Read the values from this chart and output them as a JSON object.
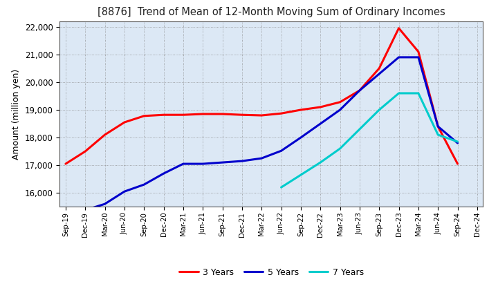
{
  "title": "[8876]  Trend of Mean of 12-Month Moving Sum of Ordinary Incomes",
  "ylabel": "Amount (million yen)",
  "ylim": [
    15500,
    22200
  ],
  "yticks": [
    16000,
    17000,
    18000,
    19000,
    20000,
    21000,
    22000
  ],
  "background_color": "#ffffff",
  "plot_bg_color": "#dce8f5",
  "grid_color": "#888888",
  "x_labels": [
    "Sep-19",
    "Dec-19",
    "Mar-20",
    "Jun-20",
    "Sep-20",
    "Dec-20",
    "Mar-21",
    "Jun-21",
    "Sep-21",
    "Dec-21",
    "Mar-22",
    "Jun-22",
    "Sep-22",
    "Dec-22",
    "Mar-23",
    "Jun-23",
    "Sep-23",
    "Dec-23",
    "Mar-24",
    "Jun-24",
    "Sep-24",
    "Dec-24"
  ],
  "series": {
    "3 Years": {
      "color": "#ff0000",
      "data_x": [
        0,
        1,
        2,
        3,
        4,
        5,
        6,
        7,
        8,
        9,
        10,
        11,
        12,
        13,
        14,
        15,
        16,
        17,
        18,
        19,
        20,
        21
      ],
      "data_y": [
        17050,
        17500,
        18100,
        18550,
        18780,
        18820,
        18820,
        18850,
        18850,
        18820,
        18800,
        18870,
        19000,
        19100,
        19280,
        19700,
        20500,
        21950,
        21100,
        18400,
        17050,
        null
      ]
    },
    "5 Years": {
      "color": "#0000cc",
      "data_x": [
        0,
        1,
        2,
        3,
        4,
        5,
        6,
        7,
        8,
        9,
        10,
        11,
        12,
        13,
        14,
        15,
        16,
        17,
        18,
        19,
        20,
        21
      ],
      "data_y": [
        null,
        15380,
        15600,
        16050,
        16300,
        16700,
        17050,
        17050,
        17100,
        17150,
        17250,
        17520,
        18000,
        18500,
        19000,
        19700,
        20300,
        20900,
        20900,
        18400,
        17800,
        null
      ]
    },
    "7 Years": {
      "color": "#00cccc",
      "data_x": [
        0,
        1,
        2,
        3,
        4,
        5,
        6,
        7,
        8,
        9,
        10,
        11,
        12,
        13,
        14,
        15,
        16,
        17,
        18,
        19,
        20,
        21
      ],
      "data_y": [
        null,
        null,
        null,
        null,
        null,
        null,
        null,
        null,
        null,
        null,
        null,
        16200,
        16650,
        17100,
        17600,
        18300,
        19000,
        19600,
        19600,
        18100,
        17850,
        null
      ]
    },
    "10 Years": {
      "color": "#007700",
      "data_x": [
        0,
        1,
        2,
        3,
        4,
        5,
        6,
        7,
        8,
        9,
        10,
        11,
        12,
        13,
        14,
        15,
        16,
        17,
        18,
        19,
        20,
        21
      ],
      "data_y": [
        null,
        null,
        null,
        null,
        null,
        null,
        null,
        null,
        null,
        null,
        null,
        null,
        null,
        null,
        null,
        null,
        null,
        null,
        null,
        null,
        null,
        null
      ]
    }
  }
}
